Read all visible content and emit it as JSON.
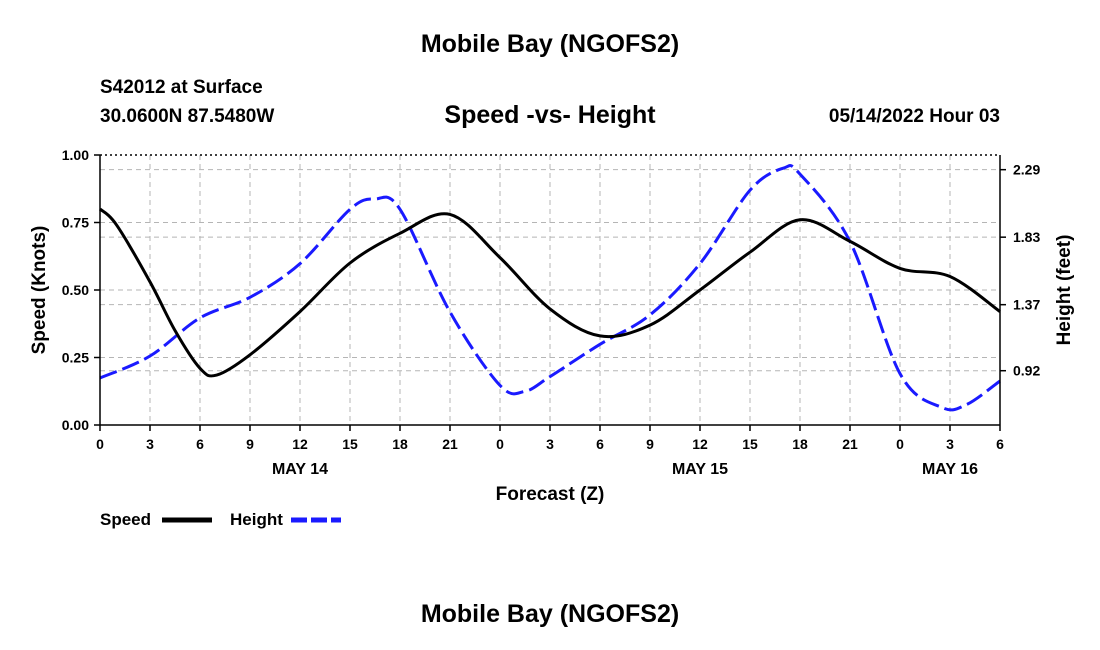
{
  "header": {
    "title": "Mobile Bay (NGOFS2)",
    "station": "S42012 at Surface",
    "coords": "30.0600N  87.5480W",
    "subtitle": "Speed -vs- Height",
    "datetime": "05/14/2022 Hour 03",
    "bottom_title": "Mobile Bay (NGOFS2)"
  },
  "chart_data": {
    "type": "line",
    "xlabel": "Forecast (Z)",
    "ylabel_left": "Speed (Knots)",
    "ylabel_right": "Height (feet)",
    "x_unit": "hours since 05/14 00Z",
    "xlim": [
      0,
      54
    ],
    "ylim_left": [
      0,
      1
    ],
    "ylim_right": [
      0.55,
      2.39
    ],
    "x_ticks": [
      0,
      3,
      6,
      9,
      12,
      15,
      18,
      21,
      24,
      27,
      30,
      33,
      36,
      39,
      42,
      45,
      48,
      51,
      54
    ],
    "x_tick_labels": [
      "0",
      "3",
      "6",
      "9",
      "12",
      "15",
      "18",
      "21",
      "0",
      "3",
      "6",
      "9",
      "12",
      "15",
      "18",
      "21",
      "0",
      "3",
      "6"
    ],
    "date_labels": [
      {
        "x": 12,
        "text": "MAY 14"
      },
      {
        "x": 36,
        "text": "MAY 15"
      },
      {
        "x": 51,
        "text": "MAY 16"
      }
    ],
    "y_left_ticks": [
      0,
      0.25,
      0.5,
      0.75,
      1.0
    ],
    "y_left_tick_labels": [
      "0.00",
      "0.25",
      "0.50",
      "0.75",
      "1.00"
    ],
    "y_right_ticks": [
      0.92,
      1.37,
      1.83,
      2.29
    ],
    "y_right_tick_labels": [
      "0.92",
      "1.37",
      "1.83",
      "2.29"
    ],
    "grid": true,
    "legend_position": "bottom-left",
    "series": [
      {
        "name": "Speed",
        "axis": "left",
        "color": "#000000",
        "style": "solid",
        "x": [
          0,
          1,
          3,
          4.5,
          6,
          7,
          9,
          12,
          15,
          18,
          21,
          24,
          27,
          30,
          33,
          36,
          39,
          42,
          45,
          48,
          51,
          54
        ],
        "values": [
          0.8,
          0.74,
          0.53,
          0.35,
          0.21,
          0.185,
          0.26,
          0.42,
          0.6,
          0.71,
          0.78,
          0.62,
          0.43,
          0.33,
          0.37,
          0.5,
          0.64,
          0.76,
          0.68,
          0.58,
          0.55,
          0.42
        ]
      },
      {
        "name": "Height",
        "axis": "right",
        "color": "#1a1aff",
        "style": "dashed",
        "x": [
          0,
          3,
          6,
          9,
          12,
          15,
          16.5,
          18,
          21,
          24,
          25.5,
          27,
          30,
          33,
          36,
          39,
          41,
          42,
          45,
          48,
          50.5,
          52,
          54
        ],
        "values": [
          0.87,
          1.02,
          1.28,
          1.42,
          1.65,
          2.02,
          2.09,
          2.02,
          1.32,
          0.82,
          0.78,
          0.88,
          1.1,
          1.3,
          1.65,
          2.15,
          2.3,
          2.26,
          1.8,
          0.9,
          0.67,
          0.69,
          0.85
        ]
      }
    ]
  }
}
